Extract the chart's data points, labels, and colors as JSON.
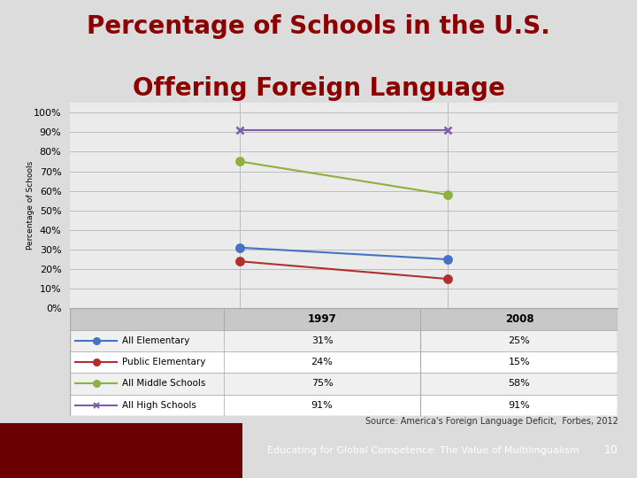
{
  "title_line1": "Percentage of Schools in the U.S.",
  "title_line2": "Offering Foreign Language",
  "title_color": "#8B0000",
  "title_fontsize": 20,
  "ylabel": "Percentage of Schools",
  "years": [
    1997,
    2008
  ],
  "series": [
    {
      "label": "All Elementary",
      "values": [
        31,
        25
      ],
      "color": "#4472C4",
      "marker": "o",
      "linewidth": 1.5
    },
    {
      "label": "Public Elementary",
      "values": [
        24,
        15
      ],
      "color": "#B03030",
      "marker": "o",
      "linewidth": 1.5
    },
    {
      "label": "All Middle Schools",
      "values": [
        75,
        58
      ],
      "color": "#8DB03E",
      "marker": "o",
      "linewidth": 1.5
    },
    {
      "label": "All High Schools",
      "values": [
        91,
        91
      ],
      "color": "#7B5EA7",
      "marker": "x",
      "linewidth": 1.5
    }
  ],
  "yticks": [
    0,
    10,
    20,
    30,
    40,
    50,
    60,
    70,
    80,
    90,
    100
  ],
  "ytick_labels": [
    "0%",
    "10%",
    "20%",
    "30%",
    "40%",
    "50%",
    "60%",
    "70%",
    "80%",
    "90%",
    "100%"
  ],
  "ylim": [
    0,
    105
  ],
  "background_color": "#DCDCDC",
  "plot_bg_color": "#EBEBEB",
  "source_text": "Source: America's Foreign Language Deficit,  Forbes, 2012",
  "footer_bg": "#8B0000",
  "footer_text": "Educating for Global Competence: The Value of Multilingualism",
  "footer_number": "10",
  "grid_color": "#BBBBBB",
  "table_header_bg": "#C8C8C8",
  "table_row_bg1": "#F0F0F0",
  "table_row_bg2": "#FFFFFF",
  "table_border": "#AAAAAA"
}
